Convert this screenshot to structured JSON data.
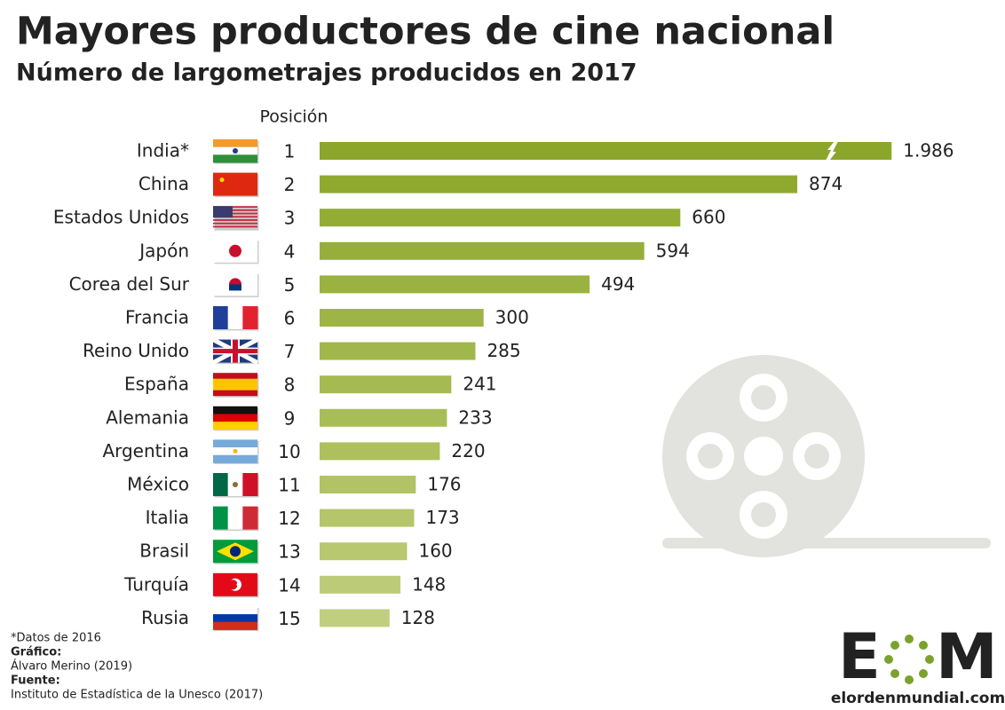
{
  "chart_data": {
    "type": "bar",
    "orientation": "horizontal",
    "title": "Mayores productores de cine nacional",
    "subtitle": "Número de largometrajes producidos en 2017",
    "position_header": "Posición",
    "categories": [
      "India*",
      "China",
      "Estados Unidos",
      "Japón",
      "Corea del Sur",
      "Francia",
      "Reino Unido",
      "España",
      "Alemania",
      "Argentina",
      "México",
      "Italia",
      "Brasil",
      "Turquía",
      "Rusia"
    ],
    "positions": [
      1,
      2,
      3,
      4,
      5,
      6,
      7,
      8,
      9,
      10,
      11,
      12,
      13,
      14,
      15
    ],
    "values": [
      1986,
      874,
      660,
      594,
      494,
      300,
      285,
      241,
      233,
      220,
      176,
      173,
      160,
      148,
      128
    ],
    "value_labels": [
      "1.986",
      "874",
      "660",
      "594",
      "494",
      "300",
      "285",
      "241",
      "233",
      "220",
      "176",
      "173",
      "160",
      "148",
      "128"
    ],
    "colors": [
      "#8ba62b",
      "#8fa92f",
      "#93ac34",
      "#97af3a",
      "#9ab23f",
      "#9eb545",
      "#a1b74b",
      "#a5ba51",
      "#a9bd57",
      "#adc05d",
      "#b1c364",
      "#b4c56a",
      "#b8c871",
      "#bccb78",
      "#c0ce80"
    ],
    "axis_break": true
  },
  "footer": {
    "note": "*Datos de 2016",
    "graphic_label": "Gráfico:",
    "graphic_author": "Álvaro Merino (2019)",
    "source_label": "Fuente:",
    "source": "Instituto de Estadística de la Unesco (2017)"
  },
  "logo": {
    "first_letter": "E",
    "last_letter": "M",
    "site": "elordenmundial.com"
  }
}
